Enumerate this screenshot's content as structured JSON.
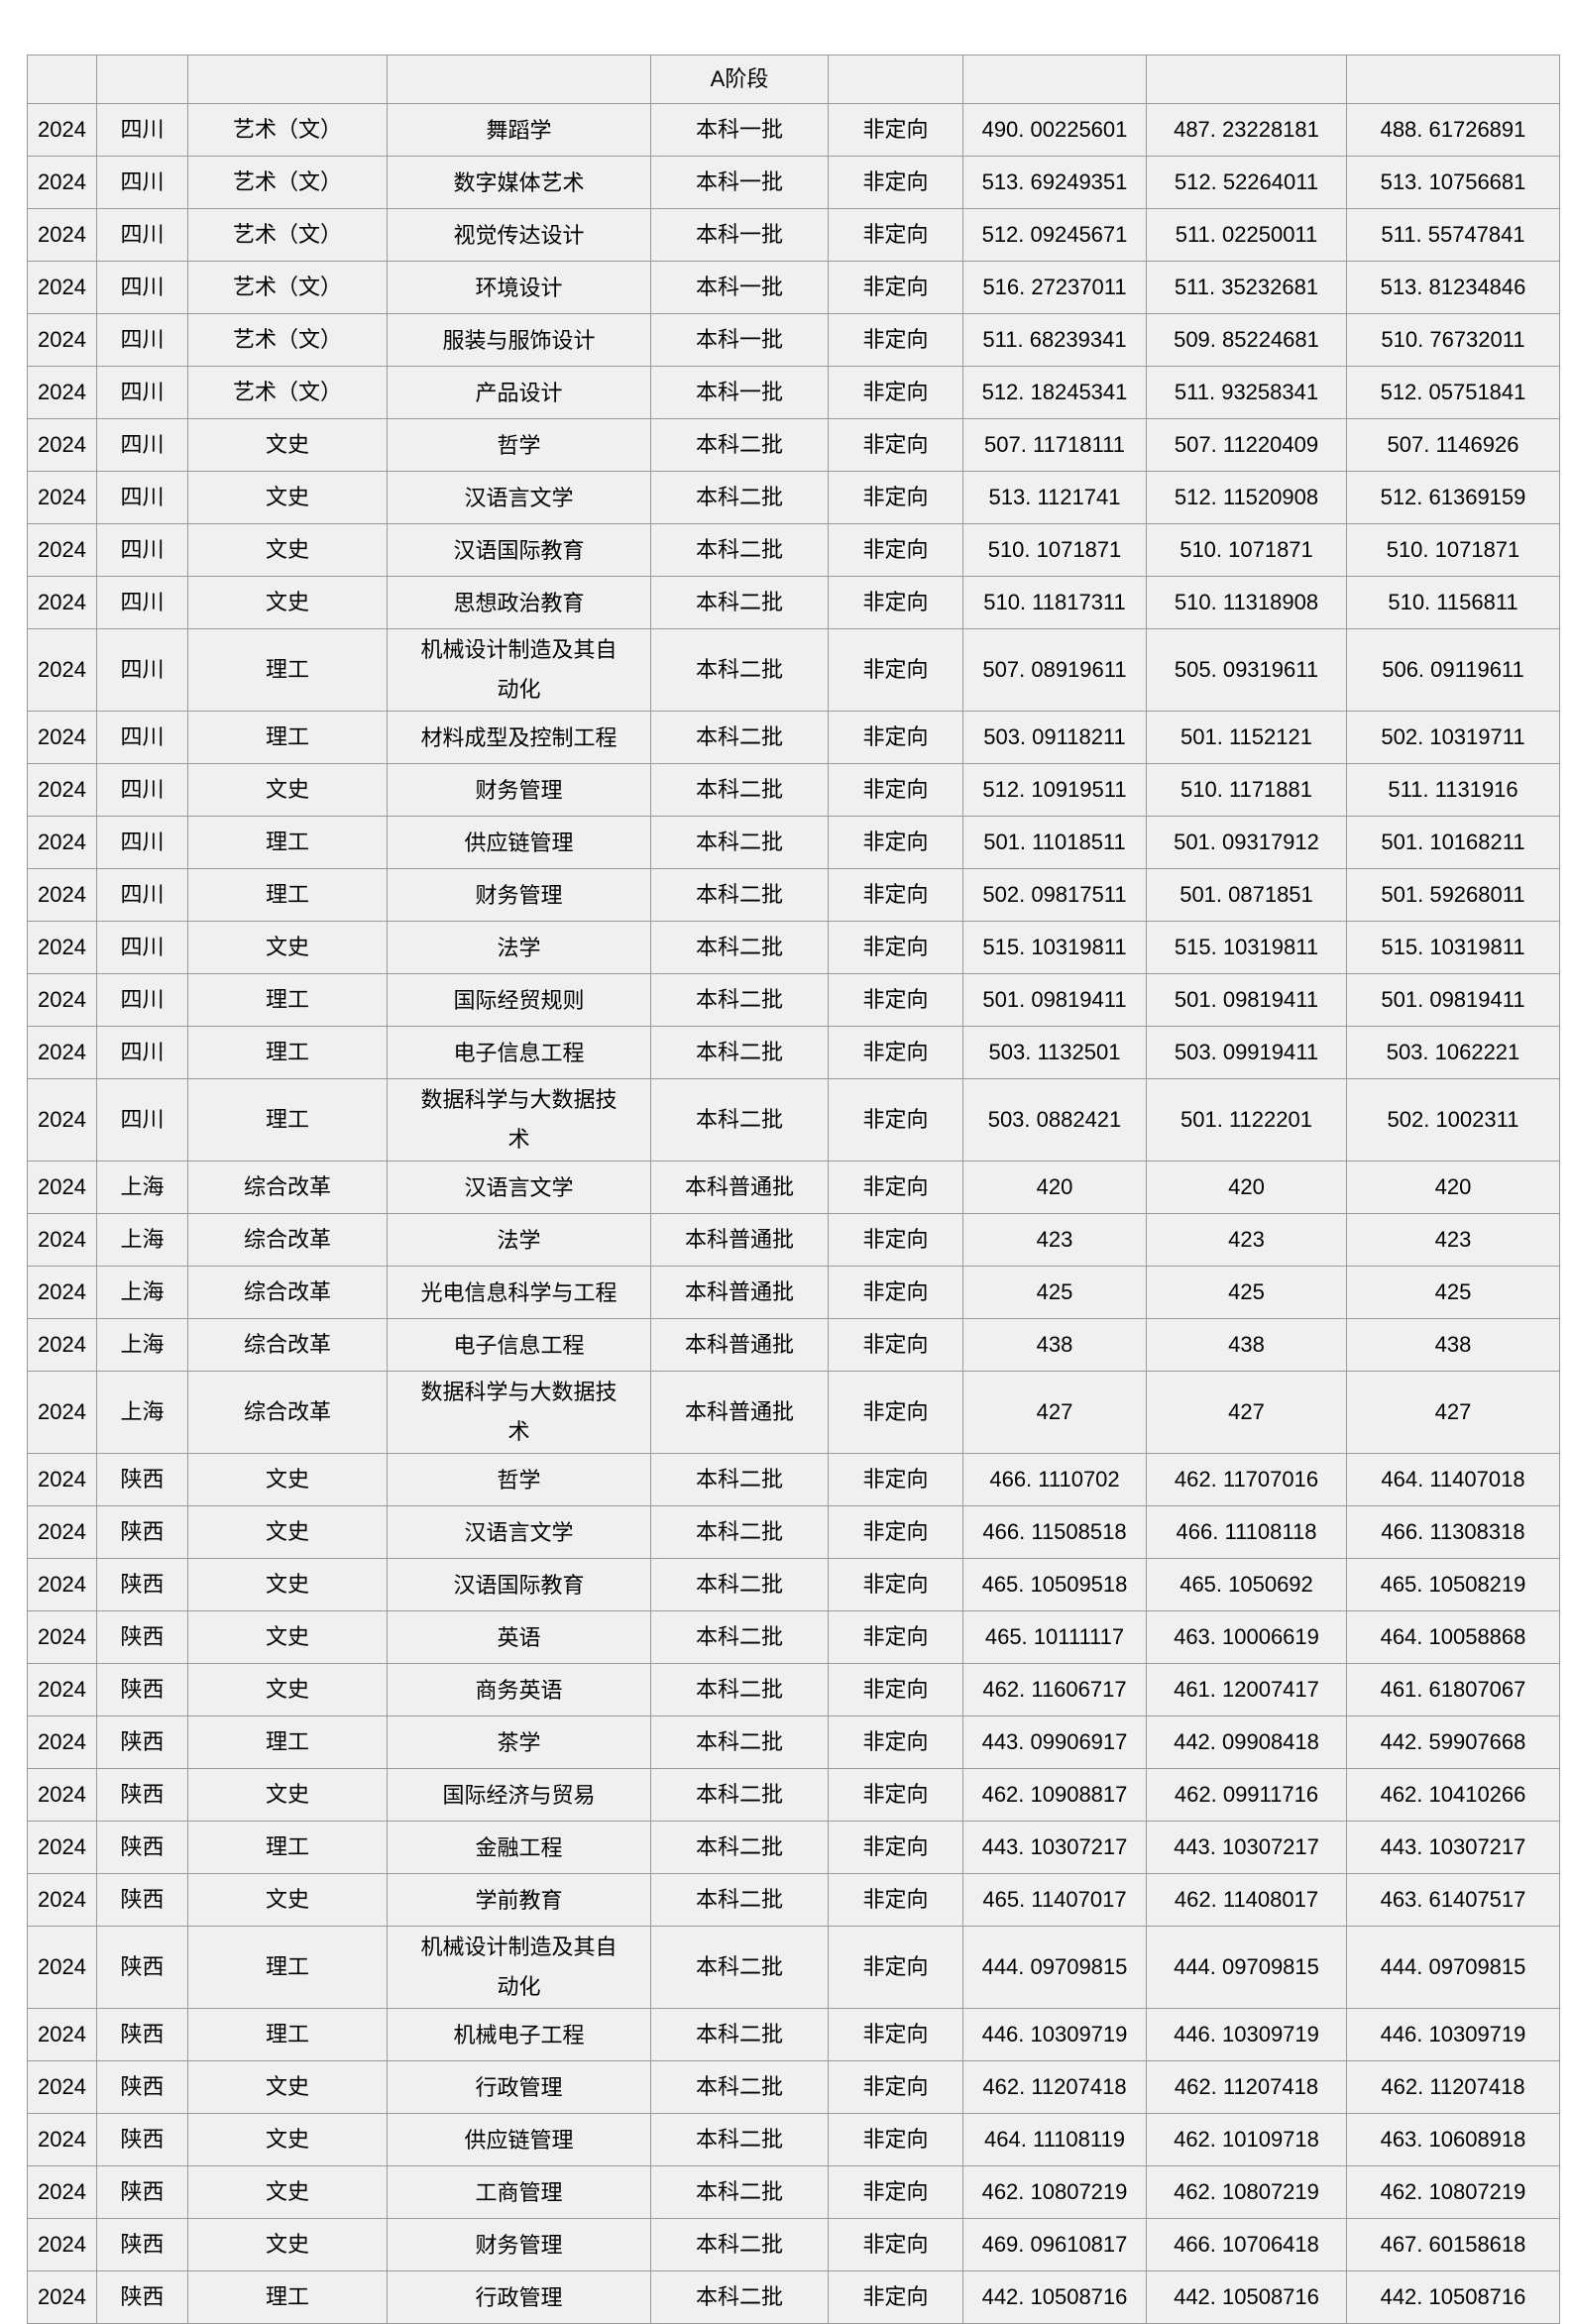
{
  "colors": {
    "page_background": "#ffffff",
    "cell_background": "#f0f0f0",
    "border": "#999999",
    "text": "#000000"
  },
  "table": {
    "header_cells": [
      "",
      "",
      "",
      "",
      "A阶段",
      "",
      "",
      "",
      ""
    ],
    "rows": [
      [
        "2024",
        "四川",
        "艺术（文）",
        "舞蹈学",
        "本科一批",
        "非定向",
        "490. 00225601",
        "487. 23228181",
        "488. 61726891"
      ],
      [
        "2024",
        "四川",
        "艺术（文）",
        "数字媒体艺术",
        "本科一批",
        "非定向",
        "513. 69249351",
        "512. 52264011",
        "513. 10756681"
      ],
      [
        "2024",
        "四川",
        "艺术（文）",
        "视觉传达设计",
        "本科一批",
        "非定向",
        "512. 09245671",
        "511. 02250011",
        "511. 55747841"
      ],
      [
        "2024",
        "四川",
        "艺术（文）",
        "环境设计",
        "本科一批",
        "非定向",
        "516. 27237011",
        "511. 35232681",
        "513. 81234846"
      ],
      [
        "2024",
        "四川",
        "艺术（文）",
        "服装与服饰设计",
        "本科一批",
        "非定向",
        "511. 68239341",
        "509. 85224681",
        "510. 76732011"
      ],
      [
        "2024",
        "四川",
        "艺术（文）",
        "产品设计",
        "本科一批",
        "非定向",
        "512. 18245341",
        "511. 93258341",
        "512. 05751841"
      ],
      [
        "2024",
        "四川",
        "文史",
        "哲学",
        "本科二批",
        "非定向",
        "507. 11718111",
        "507. 11220409",
        "507. 1146926"
      ],
      [
        "2024",
        "四川",
        "文史",
        "汉语言文学",
        "本科二批",
        "非定向",
        "513. 1121741",
        "512. 11520908",
        "512. 61369159"
      ],
      [
        "2024",
        "四川",
        "文史",
        "汉语国际教育",
        "本科二批",
        "非定向",
        "510. 1071871",
        "510. 1071871",
        "510. 1071871"
      ],
      [
        "2024",
        "四川",
        "文史",
        "思想政治教育",
        "本科二批",
        "非定向",
        "510. 11817311",
        "510. 11318908",
        "510. 1156811"
      ],
      [
        "2024",
        "四川",
        "理工",
        "机械设计制造及其自动化",
        "本科二批",
        "非定向",
        "507. 08919611",
        "505. 09319611",
        "506. 09119611"
      ],
      [
        "2024",
        "四川",
        "理工",
        "材料成型及控制工程",
        "本科二批",
        "非定向",
        "503. 09118211",
        "501. 1152121",
        "502. 10319711"
      ],
      [
        "2024",
        "四川",
        "文史",
        "财务管理",
        "本科二批",
        "非定向",
        "512. 10919511",
        "510. 1171881",
        "511. 1131916"
      ],
      [
        "2024",
        "四川",
        "理工",
        "供应链管理",
        "本科二批",
        "非定向",
        "501. 11018511",
        "501. 09317912",
        "501. 10168211"
      ],
      [
        "2024",
        "四川",
        "理工",
        "财务管理",
        "本科二批",
        "非定向",
        "502. 09817511",
        "501. 0871851",
        "501. 59268011"
      ],
      [
        "2024",
        "四川",
        "文史",
        "法学",
        "本科二批",
        "非定向",
        "515. 10319811",
        "515. 10319811",
        "515. 10319811"
      ],
      [
        "2024",
        "四川",
        "理工",
        "国际经贸规则",
        "本科二批",
        "非定向",
        "501. 09819411",
        "501. 09819411",
        "501. 09819411"
      ],
      [
        "2024",
        "四川",
        "理工",
        "电子信息工程",
        "本科二批",
        "非定向",
        "503. 1132501",
        "503. 09919411",
        "503. 1062221"
      ],
      [
        "2024",
        "四川",
        "理工",
        "数据科学与大数据技术",
        "本科二批",
        "非定向",
        "503. 0882421",
        "501. 1122201",
        "502. 1002311"
      ],
      [
        "2024",
        "上海",
        "综合改革",
        "汉语言文学",
        "本科普通批",
        "非定向",
        "420",
        "420",
        "420"
      ],
      [
        "2024",
        "上海",
        "综合改革",
        "法学",
        "本科普通批",
        "非定向",
        "423",
        "423",
        "423"
      ],
      [
        "2024",
        "上海",
        "综合改革",
        "光电信息科学与工程",
        "本科普通批",
        "非定向",
        "425",
        "425",
        "425"
      ],
      [
        "2024",
        "上海",
        "综合改革",
        "电子信息工程",
        "本科普通批",
        "非定向",
        "438",
        "438",
        "438"
      ],
      [
        "2024",
        "上海",
        "综合改革",
        "数据科学与大数据技术",
        "本科普通批",
        "非定向",
        "427",
        "427",
        "427"
      ],
      [
        "2024",
        "陕西",
        "文史",
        "哲学",
        "本科二批",
        "非定向",
        "466. 1110702",
        "462. 11707016",
        "464. 11407018"
      ],
      [
        "2024",
        "陕西",
        "文史",
        "汉语言文学",
        "本科二批",
        "非定向",
        "466. 11508518",
        "466. 11108118",
        "466. 11308318"
      ],
      [
        "2024",
        "陕西",
        "文史",
        "汉语国际教育",
        "本科二批",
        "非定向",
        "465. 10509518",
        "465. 1050692",
        "465. 10508219"
      ],
      [
        "2024",
        "陕西",
        "文史",
        "英语",
        "本科二批",
        "非定向",
        "465. 10111117",
        "463. 10006619",
        "464. 10058868"
      ],
      [
        "2024",
        "陕西",
        "文史",
        "商务英语",
        "本科二批",
        "非定向",
        "462. 11606717",
        "461. 12007417",
        "461. 61807067"
      ],
      [
        "2024",
        "陕西",
        "理工",
        "茶学",
        "本科二批",
        "非定向",
        "443. 09906917",
        "442. 09908418",
        "442. 59907668"
      ],
      [
        "2024",
        "陕西",
        "文史",
        "国际经济与贸易",
        "本科二批",
        "非定向",
        "462. 10908817",
        "462. 09911716",
        "462. 10410266"
      ],
      [
        "2024",
        "陕西",
        "理工",
        "金融工程",
        "本科二批",
        "非定向",
        "443. 10307217",
        "443. 10307217",
        "443. 10307217"
      ],
      [
        "2024",
        "陕西",
        "文史",
        "学前教育",
        "本科二批",
        "非定向",
        "465. 11407017",
        "462. 11408017",
        "463. 61407517"
      ],
      [
        "2024",
        "陕西",
        "理工",
        "机械设计制造及其自动化",
        "本科二批",
        "非定向",
        "444. 09709815",
        "444. 09709815",
        "444. 09709815"
      ],
      [
        "2024",
        "陕西",
        "理工",
        "机械电子工程",
        "本科二批",
        "非定向",
        "446. 10309719",
        "446. 10309719",
        "446. 10309719"
      ],
      [
        "2024",
        "陕西",
        "文史",
        "行政管理",
        "本科二批",
        "非定向",
        "462. 11207418",
        "462. 11207418",
        "462. 11207418"
      ],
      [
        "2024",
        "陕西",
        "文史",
        "供应链管理",
        "本科二批",
        "非定向",
        "464. 11108119",
        "462. 10109718",
        "463. 10608918"
      ],
      [
        "2024",
        "陕西",
        "文史",
        "工商管理",
        "本科二批",
        "非定向",
        "462. 10807219",
        "462. 10807219",
        "462. 10807219"
      ],
      [
        "2024",
        "陕西",
        "文史",
        "财务管理",
        "本科二批",
        "非定向",
        "469. 09610817",
        "466. 10706418",
        "467. 60158618"
      ],
      [
        "2024",
        "陕西",
        "理工",
        "行政管理",
        "本科二批",
        "非定向",
        "442. 10508716",
        "442. 10508716",
        "442. 10508716"
      ]
    ]
  }
}
